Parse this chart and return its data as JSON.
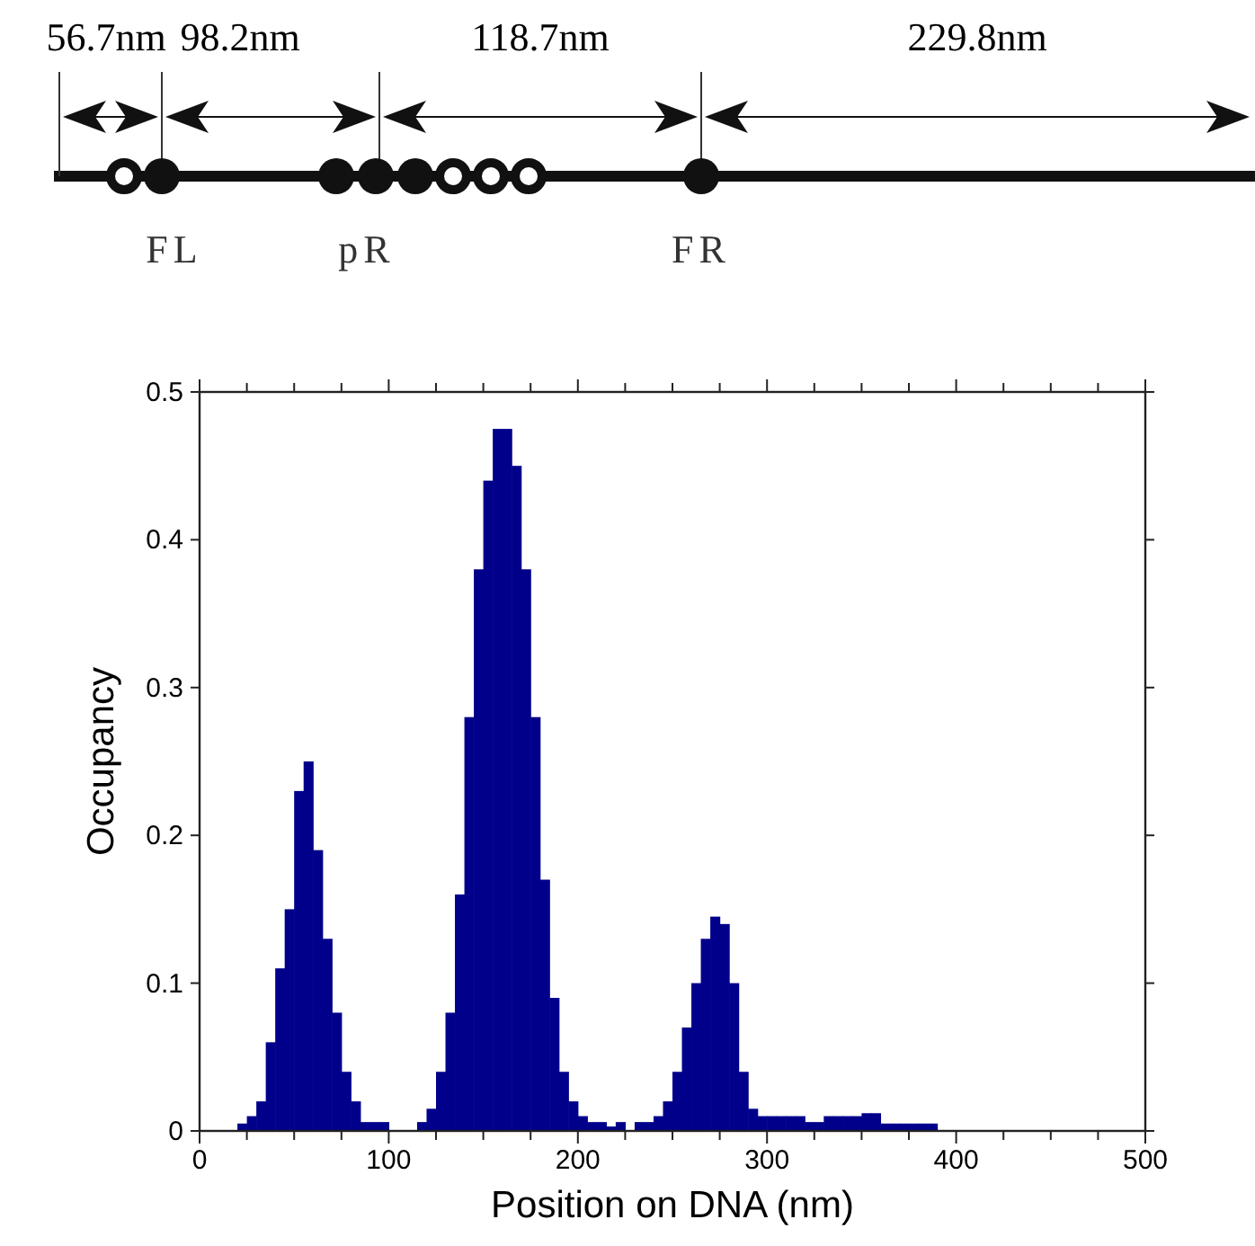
{
  "chart_data": {
    "type": "histogram",
    "xlabel": "Position on DNA (nm)",
    "ylabel": "Occupancy",
    "annotations": [
      "56.7nm",
      "98.2nm",
      "118.7nm",
      "229.8nm",
      "FL",
      "pR",
      "FR"
    ],
    "color": "#00008b",
    "bins": [
      20,
      25,
      30,
      35,
      40,
      45,
      50,
      55,
      60,
      65,
      70,
      75,
      80,
      85,
      90,
      95,
      100,
      105,
      110,
      115,
      120,
      125,
      130,
      135,
      140,
      145,
      150,
      155,
      160,
      165,
      170,
      175,
      180,
      185,
      190,
      195,
      200,
      205,
      210,
      215,
      220,
      225,
      230,
      235,
      240,
      245,
      250,
      255,
      260,
      265,
      270,
      275,
      280,
      285,
      290,
      295,
      300,
      305,
      310,
      315,
      320,
      325,
      330,
      335,
      340,
      345,
      350,
      355,
      360,
      365,
      370,
      375,
      380,
      385,
      390
    ],
    "values": [
      0.005,
      0.01,
      0.02,
      0.06,
      0.11,
      0.15,
      0.23,
      0.25,
      0.19,
      0.13,
      0.08,
      0.04,
      0.02,
      0.006,
      0.006,
      0.006,
      0,
      0,
      0,
      0.006,
      0.015,
      0.04,
      0.08,
      0.16,
      0.28,
      0.38,
      0.44,
      0.475,
      0.475,
      0.45,
      0.38,
      0.28,
      0.17,
      0.09,
      0.04,
      0.02,
      0.01,
      0.006,
      0.006,
      0.003,
      0.006,
      0,
      0.006,
      0.006,
      0.01,
      0.02,
      0.04,
      0.07,
      0.1,
      0.13,
      0.145,
      0.14,
      0.1,
      0.04,
      0.015,
      0.01,
      0.01,
      0.01,
      0.01,
      0.01,
      0.006,
      0.006,
      0.01,
      0.01,
      0.01,
      0.01,
      0.012,
      0.012,
      0.005,
      0.005,
      0.005,
      0.005,
      0.005,
      0.005
    ],
    "xlim": [
      0,
      500
    ],
    "ylim": [
      0,
      0.5
    ],
    "xticks": [
      0,
      {
        "value": 25,
        "label": null
      },
      100,
      {
        "value": 50,
        "label": null
      },
      {
        "value": 75,
        "label": null
      },
      {
        "value": 125,
        "label": null
      },
      {
        "value": 150,
        "label": null
      },
      {
        "value": 175,
        "label": null
      },
      200,
      {
        "value": 225,
        "label": null
      },
      {
        "value": 250,
        "label": null
      },
      {
        "value": 275,
        "label": null
      },
      300,
      {
        "value": 325,
        "label": null
      },
      {
        "value": 350,
        "label": null
      },
      {
        "value": 375,
        "label": null
      },
      400,
      {
        "value": 425,
        "label": null
      },
      {
        "value": 450,
        "label": null
      },
      {
        "value": 475,
        "label": null
      },
      500
    ],
    "yticks": [
      0,
      0.1,
      0.2,
      0.3,
      0.4,
      0.5
    ],
    "grid": false
  }
}
